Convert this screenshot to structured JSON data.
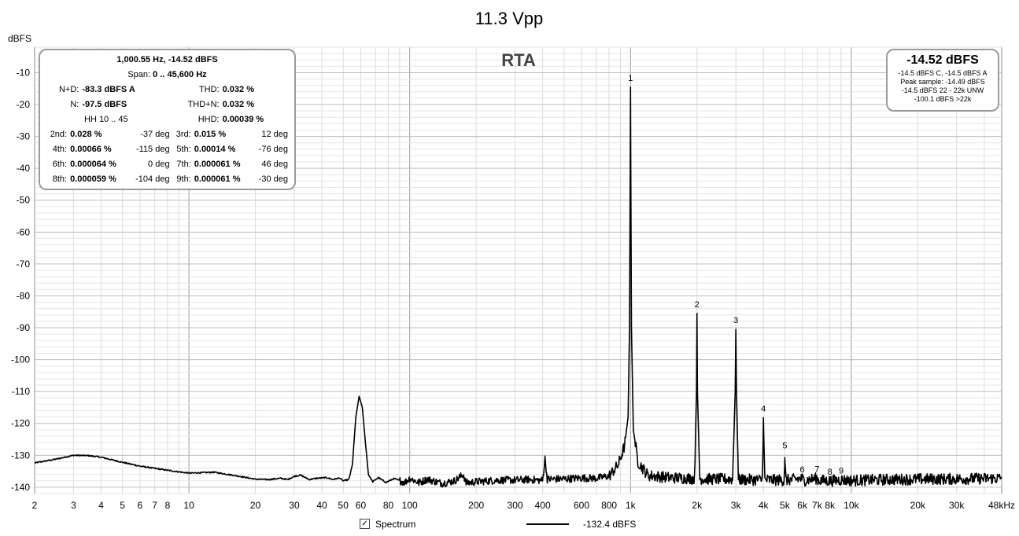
{
  "chart_data": {
    "type": "line",
    "title": "11.3 Vpp",
    "watermark": "RTA",
    "ylabel": "dBFS",
    "xscale": "log",
    "xlim": [
      2,
      48000
    ],
    "ylim": [
      -142,
      -2
    ],
    "grid": true,
    "x_ticks": [
      {
        "value": 2,
        "label": "2"
      },
      {
        "value": 3,
        "label": "3"
      },
      {
        "value": 4,
        "label": "4"
      },
      {
        "value": 5,
        "label": "5"
      },
      {
        "value": 6,
        "label": "6"
      },
      {
        "value": 7,
        "label": "7"
      },
      {
        "value": 8,
        "label": "8"
      },
      {
        "value": 10,
        "label": "10"
      },
      {
        "value": 20,
        "label": "20"
      },
      {
        "value": 30,
        "label": "30"
      },
      {
        "value": 40,
        "label": "40"
      },
      {
        "value": 50,
        "label": "50"
      },
      {
        "value": 60,
        "label": "60"
      },
      {
        "value": 80,
        "label": "80"
      },
      {
        "value": 100,
        "label": "100"
      },
      {
        "value": 200,
        "label": "200"
      },
      {
        "value": 300,
        "label": "300"
      },
      {
        "value": 400,
        "label": "400"
      },
      {
        "value": 600,
        "label": "600"
      },
      {
        "value": 800,
        "label": "800"
      },
      {
        "value": 1000,
        "label": "1k"
      },
      {
        "value": 2000,
        "label": "2k"
      },
      {
        "value": 3000,
        "label": "3k"
      },
      {
        "value": 4000,
        "label": "4k"
      },
      {
        "value": 5000,
        "label": "5k"
      },
      {
        "value": 6000,
        "label": "6k"
      },
      {
        "value": 7000,
        "label": "7k"
      },
      {
        "value": 8000,
        "label": "8k"
      },
      {
        "value": 10000,
        "label": "10k"
      },
      {
        "value": 20000,
        "label": "20k"
      },
      {
        "value": 30000,
        "label": "30k"
      },
      {
        "value": 48000,
        "label": "48kHz"
      }
    ],
    "y_ticks": [
      {
        "value": -10,
        "label": "-10"
      },
      {
        "value": -20,
        "label": "-20"
      },
      {
        "value": -30,
        "label": "-30"
      },
      {
        "value": -40,
        "label": "-40"
      },
      {
        "value": -50,
        "label": "-50"
      },
      {
        "value": -60,
        "label": "-60"
      },
      {
        "value": -70,
        "label": "-70"
      },
      {
        "value": -80,
        "label": "-80"
      },
      {
        "value": -90,
        "label": "-90"
      },
      {
        "value": -100,
        "label": "-100"
      },
      {
        "value": -110,
        "label": "-110"
      },
      {
        "value": -120,
        "label": "-120"
      },
      {
        "value": -130,
        "label": "-130"
      },
      {
        "value": -140,
        "label": "-140"
      }
    ],
    "series": [
      {
        "name": "Spectrum",
        "color": "#000000",
        "points": [
          [
            2,
            -132.4
          ],
          [
            2.5,
            -131.2
          ],
          [
            3,
            -130
          ],
          [
            3.5,
            -130.1
          ],
          [
            4,
            -130.6
          ],
          [
            5,
            -132.2
          ],
          [
            6,
            -133.4
          ],
          [
            8,
            -134.7
          ],
          [
            10,
            -135.6
          ],
          [
            13,
            -135.3
          ],
          [
            17,
            -136.6
          ],
          [
            20,
            -137.5
          ],
          [
            23,
            -137.6
          ],
          [
            26,
            -137.2
          ],
          [
            28,
            -137.6
          ],
          [
            30,
            -136.6
          ],
          [
            32,
            -136.2
          ],
          [
            35,
            -137.6
          ],
          [
            38,
            -137.2
          ],
          [
            42,
            -137
          ],
          [
            45,
            -137.6
          ],
          [
            48,
            -137.1
          ],
          [
            50,
            -138
          ],
          [
            53,
            -137.6
          ],
          [
            55,
            -133
          ],
          [
            57,
            -118
          ],
          [
            59,
            -111.5
          ],
          [
            61,
            -115
          ],
          [
            63,
            -126
          ],
          [
            65,
            -136
          ],
          [
            68,
            -138.3
          ],
          [
            72,
            -137
          ],
          [
            78,
            -138.5
          ],
          [
            85,
            -137.3
          ],
          [
            95,
            -138.5
          ],
          [
            100,
            -137.2
          ],
          [
            110,
            -138.6
          ],
          [
            120,
            -137.5
          ],
          [
            140,
            -138.8
          ],
          [
            160,
            -138
          ],
          [
            175,
            -136
          ],
          [
            180,
            -138.7
          ],
          [
            200,
            -138.3
          ],
          [
            250,
            -137.8
          ],
          [
            300,
            -137.8
          ],
          [
            350,
            -137.6
          ],
          [
            400,
            -137.9
          ],
          [
            410,
            -131
          ],
          [
            420,
            -137.5
          ],
          [
            500,
            -137.4
          ],
          [
            600,
            -137.1
          ],
          [
            700,
            -137.2
          ],
          [
            800,
            -136.5
          ],
          [
            880,
            -133
          ],
          [
            940,
            -127
          ],
          [
            975,
            -118
          ],
          [
            990,
            -90
          ],
          [
            997,
            -40
          ],
          [
            1000,
            -14.52
          ],
          [
            1003,
            -40
          ],
          [
            1010,
            -90
          ],
          [
            1030,
            -122
          ],
          [
            1080,
            -132
          ],
          [
            1200,
            -136.3
          ],
          [
            1500,
            -137
          ],
          [
            1950,
            -137.3
          ],
          [
            1990,
            -110
          ],
          [
            2000,
            -85.5
          ],
          [
            2010,
            -110
          ],
          [
            2060,
            -137.4
          ],
          [
            2900,
            -137.5
          ],
          [
            2980,
            -110
          ],
          [
            3000,
            -90.5
          ],
          [
            3020,
            -110
          ],
          [
            3080,
            -137.6
          ],
          [
            3950,
            -137.7
          ],
          [
            3985,
            -125
          ],
          [
            4000,
            -118.2
          ],
          [
            4015,
            -125
          ],
          [
            4060,
            -137.7
          ],
          [
            4960,
            -137.8
          ],
          [
            4990,
            -133
          ],
          [
            5000,
            -129.8
          ],
          [
            5010,
            -133
          ],
          [
            5060,
            -137.8
          ],
          [
            6000,
            -137.3
          ],
          [
            6100,
            -137.9
          ],
          [
            7000,
            -137.2
          ],
          [
            7100,
            -137.9
          ],
          [
            8000,
            -138
          ],
          [
            9000,
            -137.7
          ],
          [
            10000,
            -137.9
          ],
          [
            15000,
            -137.6
          ],
          [
            20000,
            -137.5
          ],
          [
            30000,
            -137.4
          ],
          [
            48000,
            -137.2
          ]
        ]
      }
    ],
    "harmonic_markers": [
      {
        "label": "1",
        "x": 1000,
        "y": -14.52
      },
      {
        "label": "2",
        "x": 2000,
        "y": -85.5
      },
      {
        "label": "3",
        "x": 3000,
        "y": -90.5
      },
      {
        "label": "4",
        "x": 4000,
        "y": -118.2
      },
      {
        "label": "5",
        "x": 5000,
        "y": -129.8
      },
      {
        "label": "6",
        "x": 6000,
        "y": -137.3
      },
      {
        "label": "7",
        "x": 7000,
        "y": -137.2
      },
      {
        "label": "8",
        "x": 8000,
        "y": -138
      },
      {
        "label": "9",
        "x": 9000,
        "y": -137.7
      }
    ]
  },
  "stats": {
    "header": "1,000.55 Hz, -14.52 dBFS",
    "span_label": "Span: ",
    "span_value": "0 .. 45,600 Hz",
    "nd_label": "N+D:",
    "nd_value": "-83.3 dBFS A",
    "thd_label": "THD:",
    "thd_value": "0.032 %",
    "n_label": "N:",
    "n_value": "-97.5 dBFS",
    "thdn_label": "THD+N:",
    "thdn_value": "0.032 %",
    "hh_label": "HH 10 .. 45",
    "hhd_label": "HHD:",
    "hhd_value": "0.00039 %",
    "harmonics": [
      {
        "l1": "2nd:",
        "v1": "0.028 %",
        "d1": "-37 deg",
        "l2": "3rd:",
        "v2": "0.015 %",
        "d2": "12 deg"
      },
      {
        "l1": "4th:",
        "v1": "0.00066 %",
        "d1": "-115 deg",
        "l2": "5th:",
        "v2": "0.00014 %",
        "d2": "-76 deg"
      },
      {
        "l1": "6th:",
        "v1": "0.000064 %",
        "d1": "0 deg",
        "l2": "7th:",
        "v2": "0.000061 %",
        "d2": "46 deg"
      },
      {
        "l1": "8th:",
        "v1": "0.000059 %",
        "d1": "-104 deg",
        "l2": "9th:",
        "v2": "0.000061 %",
        "d2": "-30 deg"
      }
    ]
  },
  "peak": {
    "value": "-14.52 dBFS",
    "lines": [
      "-14.5 dBFS C, -14.5 dBFS A",
      "Peak sample: -14.49 dBFS",
      "-14.5 dBFS 22 - 22k UNW",
      "-100.1 dBFS >22k"
    ]
  },
  "legend": {
    "checkbox_mark": "✓",
    "series_label": "Spectrum",
    "cursor_value": "-132.4 dBFS"
  }
}
